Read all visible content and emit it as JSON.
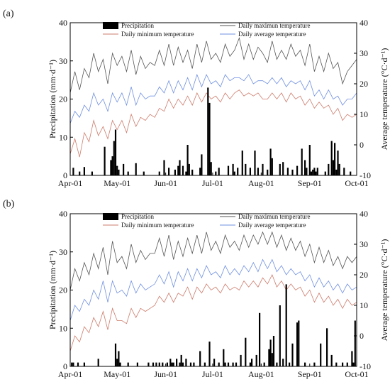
{
  "chart_data": [
    {
      "type": "bar+line",
      "panel_label": "(a)",
      "xlabel": "",
      "ylabel": "Precipitation (mm·d⁻¹)",
      "ylabel_right": "Average temperature (°C·d⁻¹)",
      "ylim": [
        0,
        40
      ],
      "ylim_right": [
        -10,
        40
      ],
      "yticks": [
        0,
        10,
        20,
        30,
        40
      ],
      "yticks_right": [
        -10,
        0,
        10,
        20,
        30,
        40
      ],
      "x_tick_labels": [
        "Apr-01",
        "May-01",
        "Jun-01",
        "Jul-01",
        "Aug-01",
        "Sep-01",
        "Oct-01"
      ],
      "x_tick_days": [
        0,
        30,
        61,
        91,
        122,
        153,
        183
      ],
      "legend": {
        "position": "top-center",
        "items": [
          "Precipitation",
          "Daily maximun temperature",
          "Daily minimum temperature",
          "Daily average temperature"
        ]
      },
      "colors": {
        "precipitation": "#000000",
        "tmax": "#555555",
        "tmin": "#cd7b6b",
        "tavg": "#6f8fe0"
      },
      "precipitation": {
        "days": [
          2,
          6,
          9,
          14,
          22,
          26,
          27,
          28,
          29,
          30,
          31,
          34,
          37,
          42,
          47,
          57,
          60,
          63,
          67,
          69,
          70,
          72,
          74,
          75,
          76,
          78,
          83,
          84,
          88,
          89,
          90,
          93,
          95,
          101,
          104,
          105,
          107,
          110,
          112,
          115,
          118,
          120,
          123,
          126,
          128,
          129,
          134,
          136,
          139,
          142,
          145,
          148,
          150,
          151,
          153,
          154,
          155,
          156,
          157,
          158,
          163,
          165,
          167,
          168,
          169,
          170,
          171,
          172,
          175,
          179
        ],
        "values": [
          2.0,
          1.0,
          2.2,
          1.0,
          7.5,
          4.0,
          5.0,
          9.0,
          12.0,
          2.5,
          1.5,
          3.0,
          1.0,
          3.2,
          1.0,
          1.0,
          4.0,
          2.0,
          1.5,
          2.5,
          4.0,
          2.5,
          1.0,
          8.0,
          3.0,
          1.5,
          2.0,
          5.5,
          23.0,
          19.0,
          3.5,
          1.0,
          2.0,
          2.5,
          3.0,
          1.0,
          2.0,
          6.5,
          3.0,
          2.0,
          6.5,
          2.0,
          3.0,
          1.5,
          7.0,
          4.5,
          3.0,
          3.5,
          2.0,
          1.5,
          2.5,
          7.0,
          4.0,
          2.0,
          8.0,
          1.0,
          1.5,
          2.0,
          1.0,
          2.0,
          1.0,
          3.0,
          9.0,
          4.0,
          8.5,
          1.5,
          6.5,
          3.0,
          2.0,
          1.0
        ]
      },
      "temperature_series": {
        "days": [
          0,
          3,
          6,
          9,
          12,
          15,
          18,
          21,
          24,
          27,
          30,
          33,
          36,
          39,
          42,
          45,
          48,
          51,
          54,
          57,
          60,
          63,
          66,
          69,
          72,
          75,
          78,
          81,
          84,
          87,
          90,
          93,
          96,
          99,
          102,
          105,
          108,
          111,
          114,
          117,
          120,
          123,
          126,
          129,
          132,
          135,
          138,
          141,
          144,
          147,
          150,
          153,
          156,
          159,
          162,
          165,
          168,
          171,
          174,
          177,
          180,
          183
        ],
        "tmax": [
          17,
          24,
          18,
          25,
          22,
          30,
          24,
          28,
          20,
          30,
          26,
          29,
          24,
          31,
          23,
          29,
          25,
          27,
          26,
          31,
          26,
          33,
          26,
          32,
          27,
          31,
          25,
          33,
          27,
          34,
          28,
          30,
          27,
          33,
          29,
          31,
          35,
          28,
          33,
          28,
          32,
          30,
          27,
          34,
          28,
          31,
          28,
          33,
          29,
          31,
          26,
          33,
          24,
          29,
          24,
          30,
          25,
          27,
          20,
          24,
          26,
          28
        ],
        "tavg": [
          7,
          11,
          9,
          13,
          11,
          17,
          13,
          15,
          11,
          17,
          14,
          17,
          13,
          19,
          13,
          17,
          15,
          16,
          16,
          19,
          17,
          21,
          17,
          21,
          18,
          22,
          18,
          23,
          19,
          23,
          20,
          21,
          19,
          23,
          21,
          22,
          22,
          21,
          23,
          20,
          21,
          21,
          20,
          22,
          20,
          22,
          19,
          21,
          20,
          21,
          18,
          21,
          16,
          18,
          15,
          18,
          15,
          16,
          13,
          15,
          15,
          17
        ],
        "tmin": [
          -3,
          2,
          -4,
          4,
          1,
          8,
          3,
          6,
          2,
          8,
          5,
          8,
          4,
          10,
          6,
          9,
          8,
          10,
          9,
          12,
          11,
          15,
          12,
          15,
          13,
          16,
          13,
          17,
          14,
          17,
          15,
          16,
          14,
          17,
          15,
          17,
          18,
          16,
          17,
          16,
          17,
          15,
          15,
          17,
          15,
          17,
          14,
          17,
          15,
          16,
          13,
          15,
          12,
          14,
          12,
          13,
          10,
          12,
          8,
          10,
          9,
          10
        ]
      }
    },
    {
      "type": "bar+line",
      "panel_label": "(b)",
      "xlabel": "",
      "ylabel": "Precipitation (mm·d⁻¹)",
      "ylabel_right": "Average temperature (°C·d⁻¹)",
      "ylim": [
        0,
        40
      ],
      "ylim_right": [
        -10,
        40
      ],
      "yticks": [
        0,
        10,
        20,
        30,
        40
      ],
      "yticks_right": [
        -10,
        0,
        10,
        20,
        30,
        40
      ],
      "x_tick_labels": [
        "Apr-01",
        "May-01",
        "Jun-01",
        "Jul-01",
        "Aug-01",
        "Sep-01",
        "Oct-01"
      ],
      "x_tick_days": [
        0,
        30,
        61,
        91,
        122,
        153,
        183
      ],
      "legend": {
        "position": "top-center",
        "items": [
          "Precipitation",
          "Daily maximun temperature",
          "Daily minimum temperature",
          "Daily average temperature"
        ]
      },
      "colors": {
        "precipitation": "#000000",
        "tmax": "#555555",
        "tmin": "#cd7b6b",
        "tavg": "#6f8fe0"
      },
      "precipitation": {
        "days": [
          1,
          2,
          5,
          9,
          18,
          29,
          30,
          31,
          32,
          37,
          43,
          50,
          53,
          55,
          57,
          59,
          62,
          64,
          65,
          66,
          68,
          70,
          71,
          72,
          74,
          77,
          79,
          83,
          86,
          89,
          92,
          95,
          98,
          99,
          101,
          104,
          106,
          109,
          112,
          115,
          116,
          119,
          121,
          124,
          127,
          128,
          129,
          130,
          132,
          134,
          136,
          138,
          140,
          142,
          145,
          146,
          150,
          156,
          160,
          164,
          167,
          170,
          174,
          177,
          180,
          181,
          182
        ],
        "values": [
          1.0,
          1.0,
          1.0,
          1.0,
          2.0,
          6.0,
          2.0,
          4.0,
          1.0,
          1.0,
          1.0,
          1.0,
          1.0,
          1.0,
          1.0,
          1.0,
          1.0,
          2.0,
          1.0,
          1.0,
          2.0,
          1.0,
          3.0,
          1.0,
          2.0,
          1.0,
          1.0,
          4.0,
          1.0,
          6.5,
          2.0,
          1.0,
          4.5,
          1.0,
          1.0,
          1.0,
          1.0,
          3.0,
          7.5,
          1.0,
          2.0,
          3.0,
          14.0,
          1.0,
          4.5,
          7.0,
          3.5,
          8.0,
          1.0,
          16.0,
          2.0,
          21.5,
          1.0,
          6.0,
          11.5,
          12.0,
          1.0,
          1.0,
          6.0,
          10.0,
          3.0,
          1.0,
          1.0,
          1.0,
          4.0,
          1.0,
          12.0
        ]
      },
      "temperature_series": {
        "days": [
          0,
          3,
          6,
          9,
          12,
          15,
          18,
          21,
          24,
          27,
          30,
          33,
          36,
          39,
          42,
          45,
          48,
          51,
          54,
          57,
          60,
          63,
          66,
          69,
          72,
          75,
          78,
          81,
          84,
          87,
          90,
          93,
          96,
          99,
          102,
          105,
          108,
          111,
          114,
          117,
          120,
          123,
          126,
          129,
          132,
          135,
          138,
          141,
          144,
          147,
          150,
          153,
          156,
          159,
          162,
          165,
          168,
          171,
          174,
          177,
          180,
          183
        ],
        "tmax": [
          15,
          22,
          18,
          24,
          20,
          27,
          22,
          29,
          20,
          31,
          24,
          26,
          22,
          30,
          24,
          28,
          25,
          27,
          27,
          32,
          26,
          33,
          25,
          31,
          26,
          32,
          27,
          33,
          27,
          34,
          28,
          31,
          27,
          33,
          29,
          31,
          28,
          33,
          29,
          33,
          30,
          34,
          30,
          34,
          29,
          33,
          28,
          32,
          28,
          31,
          26,
          30,
          24,
          29,
          24,
          28,
          23,
          26,
          22,
          26,
          24,
          26
        ],
        "tavg": [
          5,
          10,
          8,
          12,
          10,
          15,
          12,
          18,
          11,
          18,
          14,
          15,
          13,
          18,
          14,
          17,
          15,
          16,
          17,
          20,
          17,
          21,
          16,
          21,
          18,
          22,
          18,
          22,
          19,
          23,
          20,
          21,
          19,
          23,
          20,
          22,
          20,
          23,
          21,
          24,
          21,
          25,
          22,
          25,
          21,
          23,
          20,
          22,
          20,
          21,
          18,
          20,
          16,
          19,
          16,
          18,
          15,
          17,
          14,
          17,
          15,
          16
        ],
        "tmin": [
          -5,
          0,
          -2,
          3,
          1,
          6,
          3,
          8,
          2,
          9,
          5,
          5,
          4,
          9,
          6,
          9,
          8,
          9,
          10,
          13,
          11,
          14,
          11,
          14,
          13,
          16,
          12,
          16,
          14,
          17,
          15,
          16,
          14,
          17,
          15,
          16,
          15,
          18,
          16,
          18,
          16,
          19,
          17,
          20,
          16,
          18,
          15,
          17,
          15,
          16,
          13,
          15,
          11,
          14,
          11,
          13,
          10,
          12,
          9,
          12,
          10,
          11
        ]
      }
    }
  ]
}
